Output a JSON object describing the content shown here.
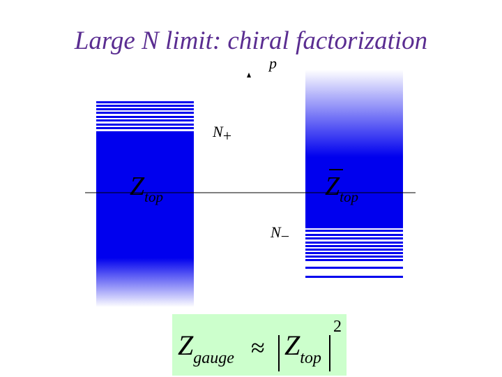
{
  "title": "Large N limit: chiral factorization",
  "labels": {
    "p": "p",
    "n_plus": {
      "base": "N",
      "sub": "+"
    },
    "n_minus": {
      "base": "N",
      "sub": "−"
    }
  },
  "left_block": {
    "base": "Z",
    "sub": "top"
  },
  "right_block": {
    "base": "Z",
    "sub": "top"
  },
  "formula": {
    "lhs_base": "Z",
    "lhs_sub": "gauge",
    "relation": "≈",
    "rhs_base": "Z",
    "rhs_sub": "top",
    "power": "2"
  }
}
